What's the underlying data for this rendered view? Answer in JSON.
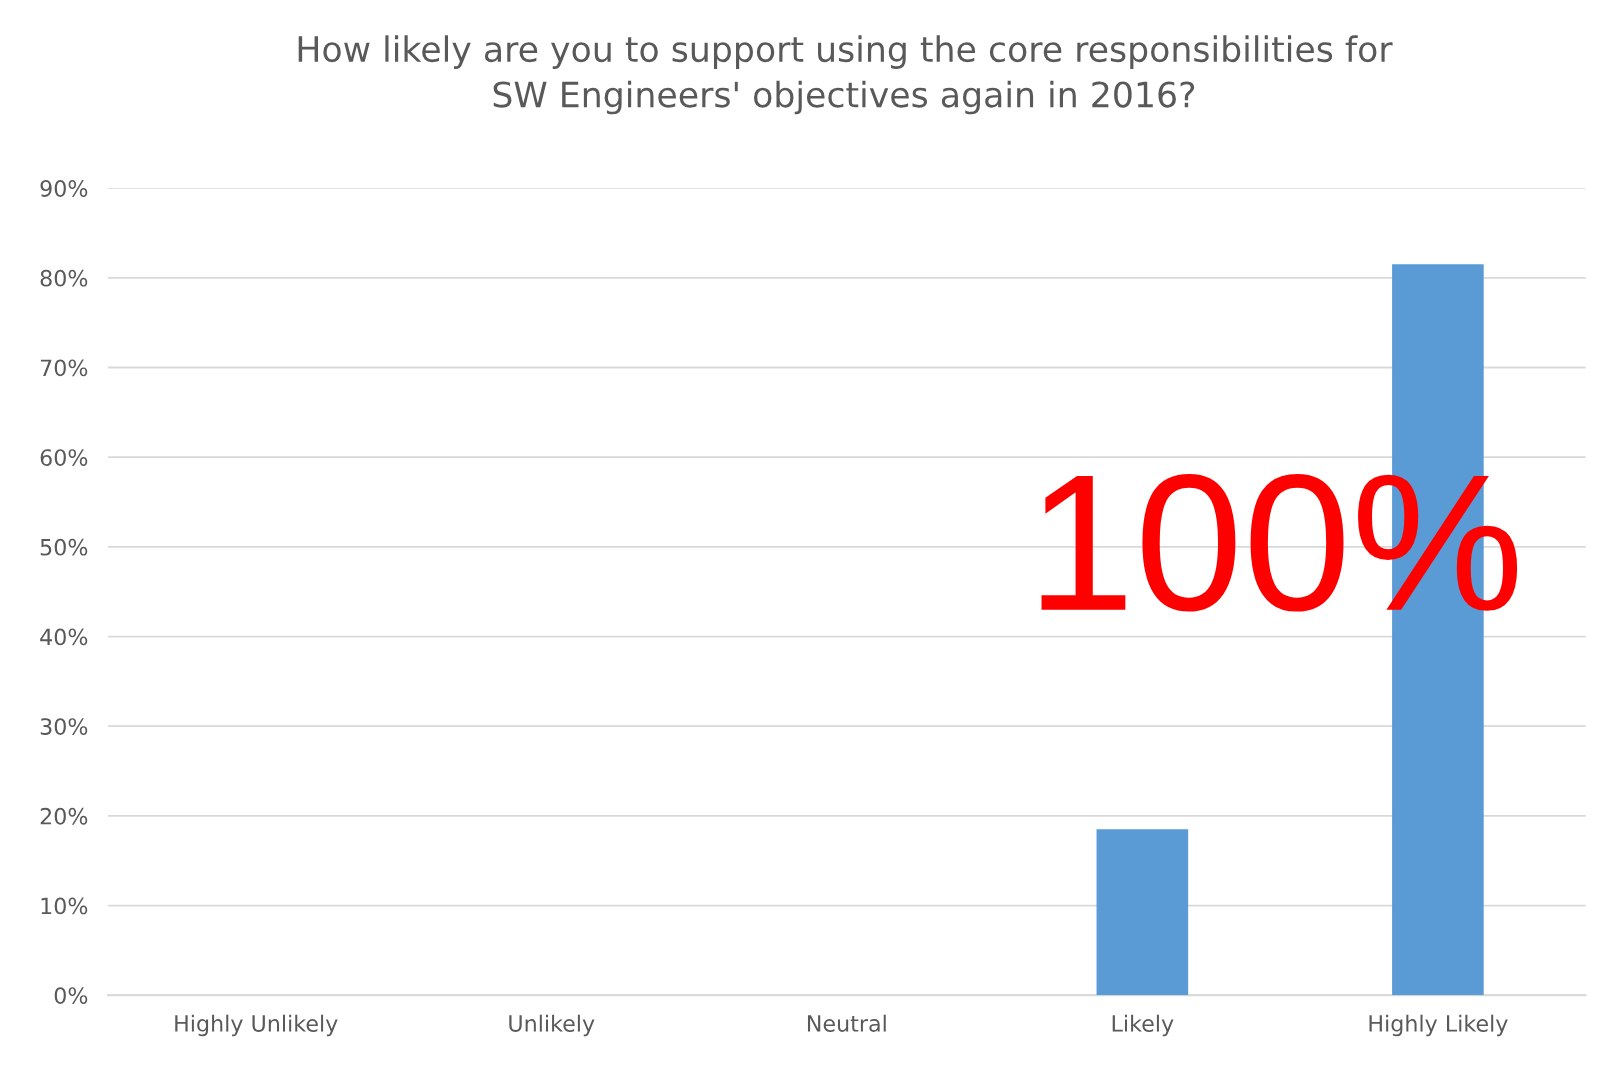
{
  "chart_data": {
    "type": "bar",
    "title": "How likely are you to support using the core responsibilities for\nSW Engineers' objectives again in 2016?",
    "categories": [
      "Highly Unlikely",
      "Unlikely",
      "Neutral",
      "Likely",
      "Highly Likely"
    ],
    "values": [
      0,
      0,
      0,
      18.5,
      81.5
    ],
    "color": "#5b9bd5",
    "ylim": [
      0,
      90
    ],
    "yticks": [
      {
        "value": 0,
        "label": "0%"
      },
      {
        "value": 10,
        "label": "10%"
      },
      {
        "value": 20,
        "label": "20%"
      },
      {
        "value": 30,
        "label": "30%"
      },
      {
        "value": 40,
        "label": "40%"
      },
      {
        "value": 50,
        "label": "50%"
      },
      {
        "value": 60,
        "label": "60%"
      },
      {
        "value": 70,
        "label": "70%"
      },
      {
        "value": 80,
        "label": "80%"
      },
      {
        "value": 90,
        "label": "90%"
      }
    ],
    "grid": "y",
    "annotations": [
      "100%"
    ]
  }
}
